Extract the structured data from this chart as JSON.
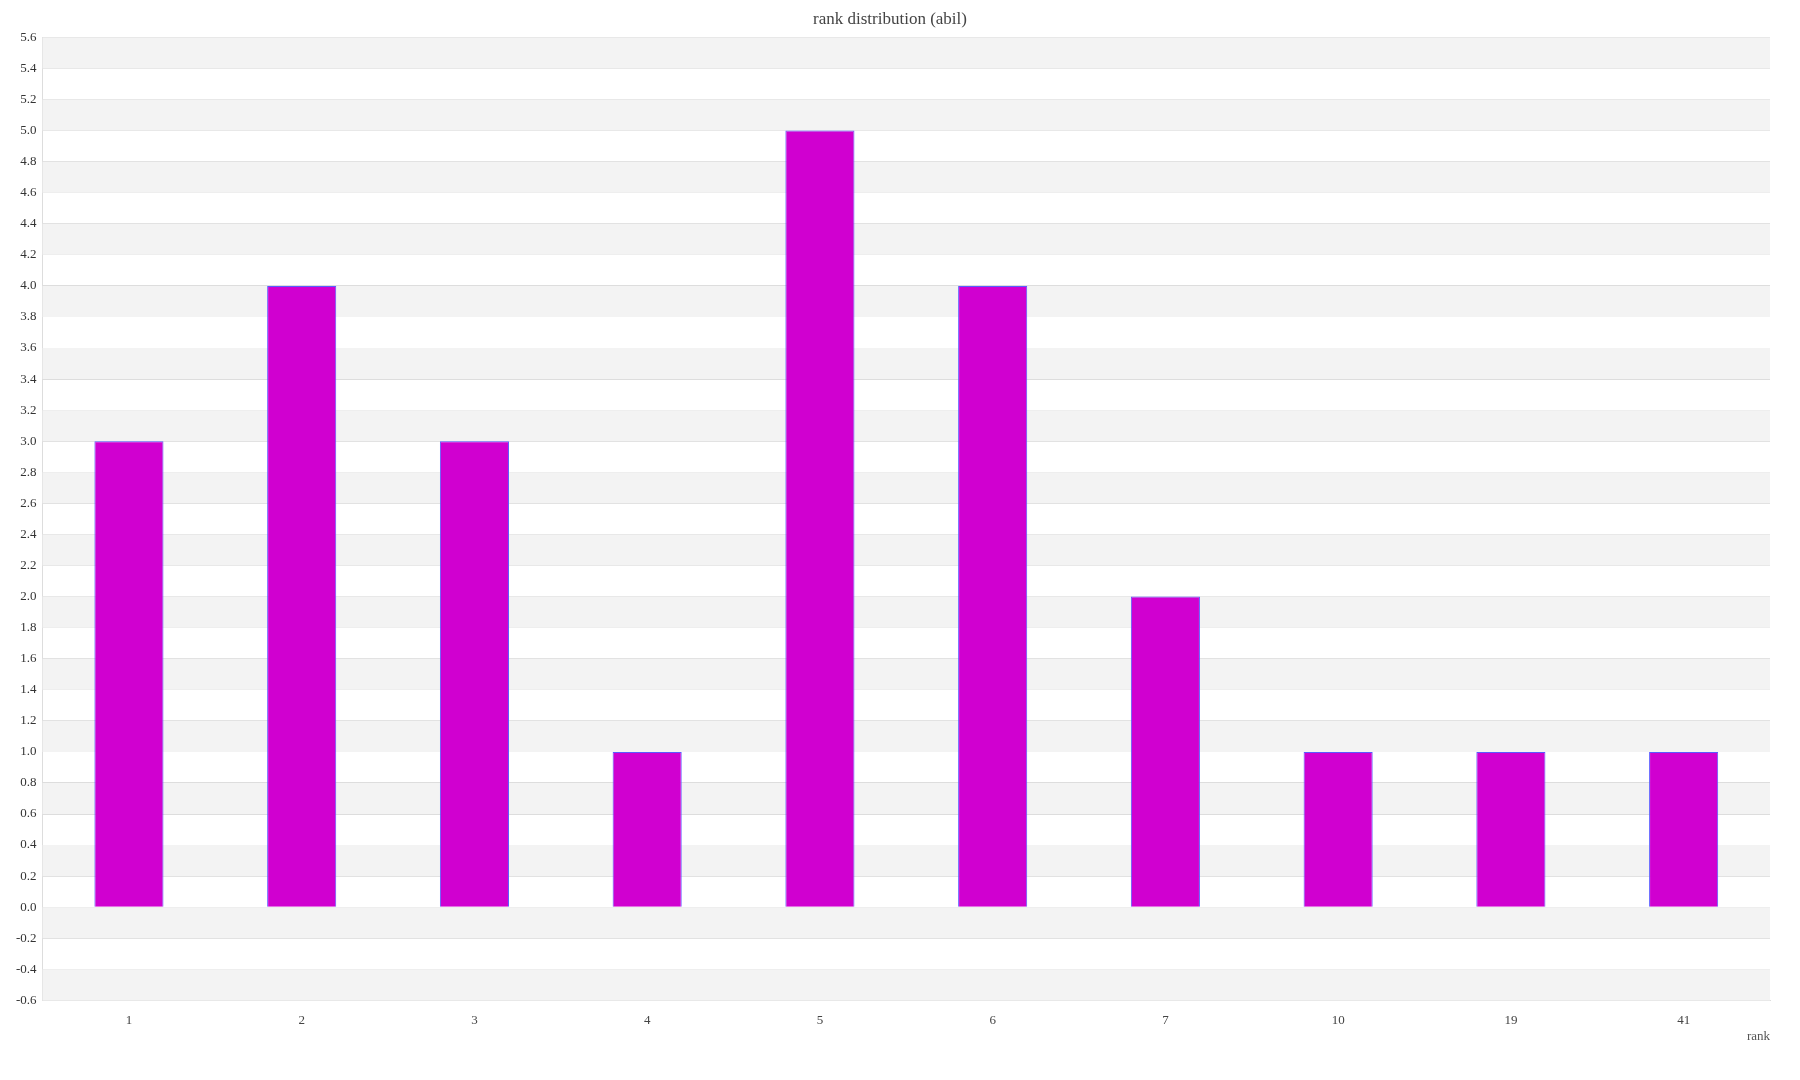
{
  "chart_data": {
    "type": "bar",
    "title": "rank distribution (abil)",
    "xlabel": "rank",
    "categories": [
      "1",
      "2",
      "3",
      "4",
      "5",
      "6",
      "7",
      "10",
      "19",
      "41"
    ],
    "values": [
      3,
      4,
      3,
      1,
      5,
      4,
      2,
      1,
      1,
      1
    ],
    "color": "#d000d0",
    "ylim": [
      -0.6,
      5.6
    ],
    "yticks": [
      {
        "value": -0.6,
        "label": "-0.6"
      },
      {
        "value": -0.4,
        "label": "-0.4"
      },
      {
        "value": -0.2,
        "label": "-0.2"
      },
      {
        "value": 0,
        "label": "0.0"
      },
      {
        "value": 0.2,
        "label": "0.2"
      },
      {
        "value": 0.4,
        "label": "0.4"
      },
      {
        "value": 0.6,
        "label": "0.6"
      },
      {
        "value": 0.8,
        "label": "0.8"
      },
      {
        "value": 1,
        "label": "1.0"
      },
      {
        "value": 1.2,
        "label": "1.2"
      },
      {
        "value": 1.4,
        "label": "1.4"
      },
      {
        "value": 1.6,
        "label": "1.6"
      },
      {
        "value": 1.8,
        "label": "1.8"
      },
      {
        "value": 2,
        "label": "2.0"
      },
      {
        "value": 2.2,
        "label": "2.2"
      },
      {
        "value": 2.4,
        "label": "2.4"
      },
      {
        "value": 2.6,
        "label": "2.6"
      },
      {
        "value": 2.8,
        "label": "2.8"
      },
      {
        "value": 3,
        "label": "3.0"
      },
      {
        "value": 3.2,
        "label": "3.2"
      },
      {
        "value": 3.4,
        "label": "3.4"
      },
      {
        "value": 3.6,
        "label": "3.6"
      },
      {
        "value": 3.8,
        "label": "3.8"
      },
      {
        "value": 4,
        "label": "4.0"
      },
      {
        "value": 4.2,
        "label": "4.2"
      },
      {
        "value": 4.4,
        "label": "4.4"
      },
      {
        "value": 4.6,
        "label": "4.6"
      },
      {
        "value": 4.8,
        "label": "4.8"
      },
      {
        "value": 5,
        "label": "5.0"
      },
      {
        "value": 5.2,
        "label": "5.2"
      },
      {
        "value": 5.4,
        "label": "5.4"
      },
      {
        "value": 5.6,
        "label": "5.6"
      }
    ],
    "grid": "y",
    "legend": false
  }
}
